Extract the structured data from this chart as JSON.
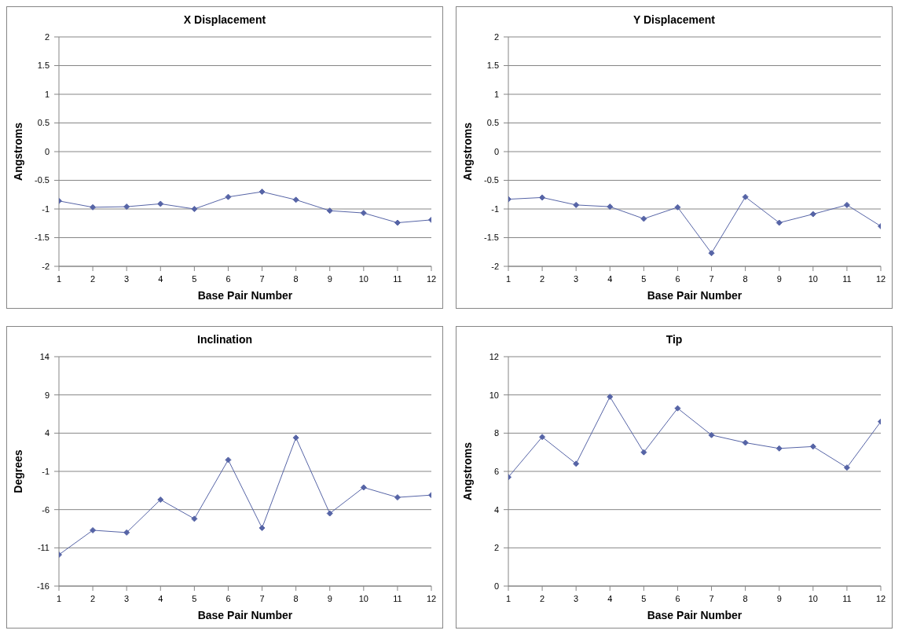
{
  "chart_data": [
    {
      "type": "line",
      "title": "X Displacement",
      "xlabel": "Base Pair Number",
      "ylabel": "Angstroms",
      "x": [
        1,
        2,
        3,
        4,
        5,
        6,
        7,
        8,
        9,
        10,
        11,
        12
      ],
      "xlim": [
        1,
        12
      ],
      "xticks": [
        1,
        2,
        3,
        4,
        5,
        6,
        7,
        8,
        9,
        10,
        11,
        12
      ],
      "series": [
        {
          "color": "#5664a6",
          "values": [
            -0.86,
            -0.97,
            -0.96,
            -0.91,
            -1.0,
            -0.79,
            -0.7,
            -0.84,
            -1.03,
            -1.07,
            -1.24,
            -1.19
          ]
        }
      ],
      "ylim": [
        -2,
        2
      ],
      "yticks": [
        -2,
        -1.5,
        -1,
        -0.5,
        0,
        0.5,
        1,
        1.5,
        2
      ],
      "grid": "y",
      "marker": "diamond"
    },
    {
      "type": "line",
      "title": "Y Displacement",
      "xlabel": "Base Pair Number",
      "ylabel": "Angstroms",
      "x": [
        1,
        2,
        3,
        4,
        5,
        6,
        7,
        8,
        9,
        10,
        11,
        12
      ],
      "xlim": [
        1,
        12
      ],
      "xticks": [
        1,
        2,
        3,
        4,
        5,
        6,
        7,
        8,
        9,
        10,
        11,
        12
      ],
      "series": [
        {
          "color": "#5664a6",
          "values": [
            -0.83,
            -0.8,
            -0.93,
            -0.96,
            -1.17,
            -0.97,
            -1.77,
            -0.79,
            -1.24,
            -1.09,
            -0.93,
            -1.3
          ]
        }
      ],
      "ylim": [
        -2,
        2
      ],
      "yticks": [
        -2,
        -1.5,
        -1,
        -0.5,
        0,
        0.5,
        1,
        1.5,
        2
      ],
      "grid": "y",
      "marker": "diamond"
    },
    {
      "type": "line",
      "title": "Inclination",
      "xlabel": "Base Pair Number",
      "ylabel": "Degrees",
      "x": [
        1,
        2,
        3,
        4,
        5,
        6,
        7,
        8,
        9,
        10,
        11,
        12
      ],
      "xlim": [
        1,
        12
      ],
      "xticks": [
        1,
        2,
        3,
        4,
        5,
        6,
        7,
        8,
        9,
        10,
        11,
        12
      ],
      "series": [
        {
          "color": "#5664a6",
          "values": [
            -11.9,
            -8.7,
            -9.0,
            -4.7,
            -7.2,
            0.5,
            -8.4,
            3.4,
            -6.5,
            -3.1,
            -4.4,
            -4.1
          ]
        }
      ],
      "ylim": [
        -16,
        14
      ],
      "yticks": [
        -16,
        -11,
        -6,
        -1,
        4,
        9,
        14
      ],
      "grid": "y",
      "marker": "diamond"
    },
    {
      "type": "line",
      "title": "Tip",
      "xlabel": "Base Pair Number",
      "ylabel": "Angstroms",
      "x": [
        1,
        2,
        3,
        4,
        5,
        6,
        7,
        8,
        9,
        10,
        11,
        12
      ],
      "xlim": [
        1,
        12
      ],
      "xticks": [
        1,
        2,
        3,
        4,
        5,
        6,
        7,
        8,
        9,
        10,
        11,
        12
      ],
      "series": [
        {
          "color": "#5664a6",
          "values": [
            5.7,
            7.8,
            6.4,
            9.9,
            7.0,
            9.3,
            7.9,
            7.5,
            7.2,
            7.3,
            6.2,
            8.6
          ]
        }
      ],
      "ylim": [
        0,
        12
      ],
      "yticks": [
        0,
        2,
        4,
        6,
        8,
        10,
        12
      ],
      "grid": "y",
      "marker": "diamond"
    }
  ]
}
